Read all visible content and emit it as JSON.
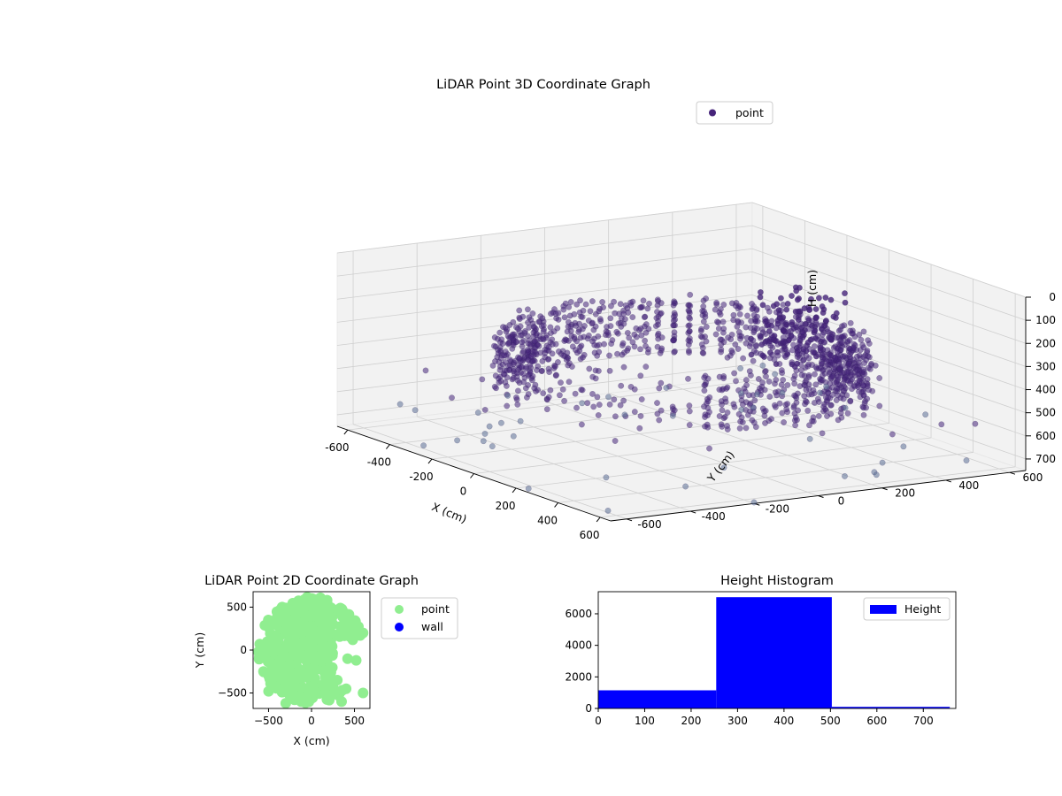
{
  "chart_data": [
    {
      "type": "scatter3d",
      "title": "LiDAR Point 3D Coordinate Graph",
      "xlabel": "X (cm)",
      "ylabel": "Y (cm)",
      "zlabel": "H (cm)",
      "xlim": [
        -650,
        650
      ],
      "ylim": [
        -650,
        650
      ],
      "zlim": [
        0,
        750
      ],
      "z_inverted": true,
      "x_ticks": [
        -600,
        -400,
        -200,
        0,
        200,
        400,
        600
      ],
      "y_ticks": [
        -600,
        -400,
        -200,
        0,
        200,
        400,
        600
      ],
      "z_ticks": [
        0,
        100,
        200,
        300,
        400,
        500,
        600,
        700
      ],
      "grid": true,
      "legend": {
        "placement": "top-right",
        "entries": [
          "point"
        ]
      },
      "series": [
        {
          "name": "point",
          "color": "#46247a",
          "structure": "rings",
          "ring_radius_min": 300,
          "ring_radius_max": 600,
          "height_range": [
            0,
            750
          ],
          "dominant_height_range": [
            250,
            500
          ]
        }
      ]
    },
    {
      "type": "scatter",
      "title": "LiDAR Point 2D Coordinate Graph",
      "xlabel": "X (cm)",
      "ylabel": "Y (cm)",
      "xlim": [
        -680,
        680
      ],
      "ylim": [
        -680,
        680
      ],
      "x_ticks": [
        -500,
        0,
        500
      ],
      "y_ticks": [
        -500,
        0,
        500
      ],
      "legend": {
        "placement": "outside-right",
        "entries": [
          "point",
          "wall"
        ]
      },
      "series": [
        {
          "name": "point",
          "color": "#90ee90"
        },
        {
          "name": "wall",
          "color": "#0000ff"
        }
      ]
    },
    {
      "type": "bar",
      "title": "Height Histogram",
      "bins": [
        [
          0,
          254
        ],
        [
          254,
          503
        ],
        [
          503,
          757
        ]
      ],
      "values": [
        1150,
        7050,
        100
      ],
      "xlim": [
        0,
        770
      ],
      "ylim": [
        0,
        7400
      ],
      "x_ticks": [
        0,
        100,
        200,
        300,
        400,
        500,
        600,
        700
      ],
      "y_ticks": [
        0,
        2000,
        4000,
        6000
      ],
      "color": "#0000ff",
      "legend": {
        "placement": "top-right",
        "entries": [
          "Height"
        ]
      },
      "series": [
        {
          "name": "Height"
        }
      ]
    }
  ]
}
